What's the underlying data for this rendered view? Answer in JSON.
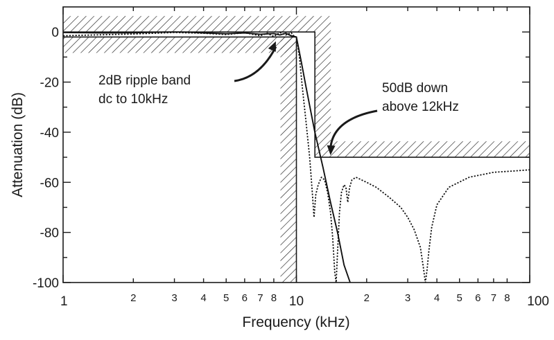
{
  "chart_data": {
    "type": "line",
    "xlabel": "Frequency (kHz)",
    "ylabel": "Attenuation (dB)",
    "xscale": "log",
    "xlim": [
      1,
      100
    ],
    "ylim": [
      -100,
      10
    ],
    "x_major_ticks": [
      {
        "v": 1,
        "label": "1"
      },
      {
        "v": 10,
        "label": "10"
      },
      {
        "v": 100,
        "label": "100"
      }
    ],
    "x_minor_ticks": [
      {
        "v": 2,
        "label": "2"
      },
      {
        "v": 3,
        "label": "3"
      },
      {
        "v": 4,
        "label": "4"
      },
      {
        "v": 5,
        "label": "5"
      },
      {
        "v": 6,
        "label": "6"
      },
      {
        "v": 7,
        "label": "7"
      },
      {
        "v": 8,
        "label": "8"
      },
      {
        "v": 20,
        "label": "2"
      },
      {
        "v": 30,
        "label": "3"
      },
      {
        "v": 40,
        "label": "4"
      },
      {
        "v": 50,
        "label": "5"
      },
      {
        "v": 60,
        "label": "6"
      },
      {
        "v": 70,
        "label": "7"
      },
      {
        "v": 80,
        "label": "8"
      }
    ],
    "y_ticks": [
      {
        "v": 0,
        "label": "0"
      },
      {
        "v": -20,
        "label": "-20"
      },
      {
        "v": -40,
        "label": "-40"
      },
      {
        "v": -60,
        "label": "-60"
      },
      {
        "v": -80,
        "label": "-80"
      },
      {
        "v": -100,
        "label": "-100"
      }
    ],
    "spec": {
      "passband_edge_khz": 10,
      "passband_ripple_db": 2,
      "stopband_edge_khz": 12,
      "stopband_atten_db": -50
    },
    "series": [
      {
        "style": "solid",
        "x": [
          1,
          1.5,
          2,
          2.5,
          3,
          3.5,
          4,
          5,
          6,
          7,
          8,
          8.5,
          9,
          9.5,
          10,
          10.5,
          11,
          12,
          13,
          14,
          15,
          16,
          17
        ],
        "y": [
          -0.2,
          -0.4,
          -0.3,
          -0.1,
          0,
          -0.1,
          -0.4,
          -0.7,
          -0.4,
          -0.9,
          -0.6,
          -1.2,
          -0.5,
          -1.5,
          -2,
          -12,
          -22,
          -40,
          -54,
          -68,
          -80,
          -93,
          -100
        ]
      },
      {
        "style": "dotted",
        "x": [
          1,
          2,
          3,
          4,
          5,
          6,
          7,
          7.5,
          8,
          8.5,
          9,
          9.5,
          9.8,
          10,
          10.3,
          10.6,
          11,
          11.4,
          11.7,
          11.9,
          12.1,
          12.4,
          12.8,
          13.2,
          13.6,
          14,
          14.3,
          14.6,
          14.8,
          15,
          15.3,
          15.6,
          16,
          16.3,
          16.6,
          16.9,
          17.3,
          18,
          20,
          22,
          25,
          28,
          30,
          32,
          34,
          35,
          35.7,
          36.3,
          37,
          38,
          40,
          45,
          55,
          70,
          85,
          100
        ],
        "y": [
          -1.5,
          -0.8,
          -0.2,
          -0.5,
          -1,
          -0.3,
          -1.5,
          -0.5,
          -1.8,
          -0.2,
          -1.2,
          -0.3,
          -1.8,
          -2,
          -10,
          -22,
          -36,
          -50,
          -64,
          -74,
          -65,
          -61,
          -58,
          -59,
          -64,
          -72,
          -82,
          -96,
          -100,
          -88,
          -72,
          -64,
          -61,
          -62,
          -68,
          -62,
          -59,
          -58,
          -60,
          -62,
          -66,
          -70,
          -74,
          -79,
          -86,
          -94,
          -100,
          -95,
          -87,
          -78,
          -69,
          -62,
          -58,
          -56,
          -55.5,
          -55
        ]
      }
    ],
    "annotations": [
      {
        "lines": [
          "2dB ripple band",
          "dc to 10kHz"
        ],
        "points_to": [
          8,
          -1.5
        ]
      },
      {
        "lines": [
          "50dB down",
          "above 12kHz"
        ],
        "points_to": [
          14,
          -50
        ]
      }
    ]
  }
}
